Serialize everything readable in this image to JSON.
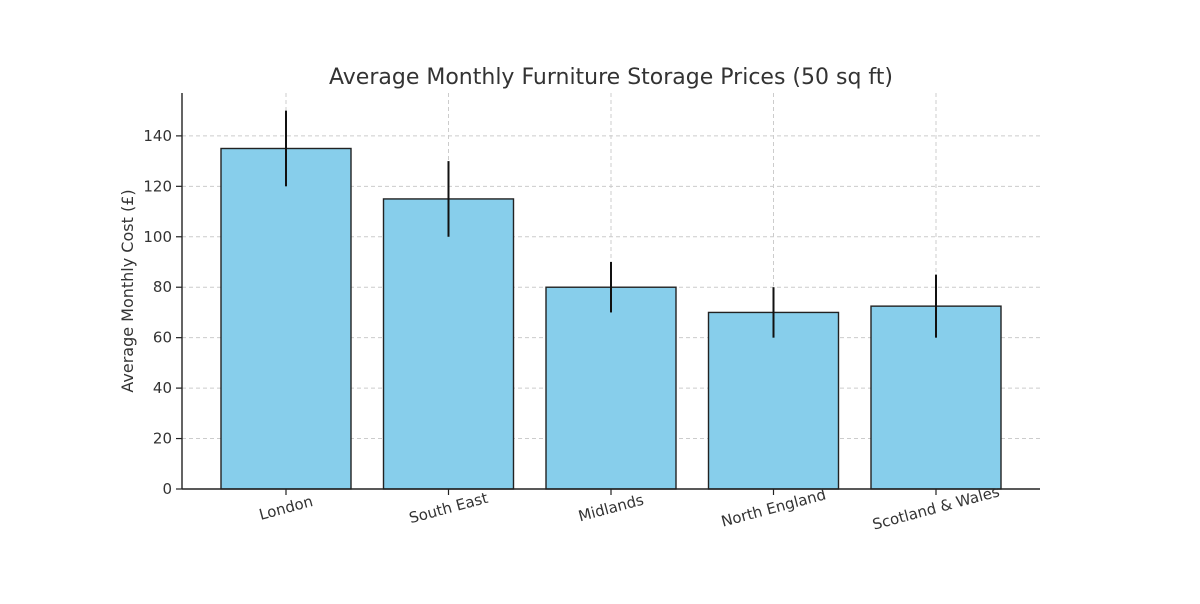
{
  "chart_data": {
    "type": "bar",
    "title": "Average Monthly Furniture Storage Prices (50 sq ft)",
    "xlabel": "",
    "ylabel": "Average Monthly Cost (£)",
    "categories": [
      "London",
      "South East",
      "Midlands",
      "North England",
      "Scotland & Wales"
    ],
    "values": [
      135,
      115,
      80,
      70,
      72.5
    ],
    "error": [
      15,
      15,
      10,
      10,
      12.5
    ],
    "ylim": [
      0,
      157
    ],
    "yticks": [
      0,
      20,
      40,
      60,
      80,
      100,
      120,
      140
    ],
    "grid": true,
    "legend": "none",
    "colors": {
      "bar_fill": "#87ceeb",
      "bar_edge": "#222222",
      "error_bar": "#111111",
      "grid": "#cccccc",
      "axis": "#222222"
    }
  }
}
